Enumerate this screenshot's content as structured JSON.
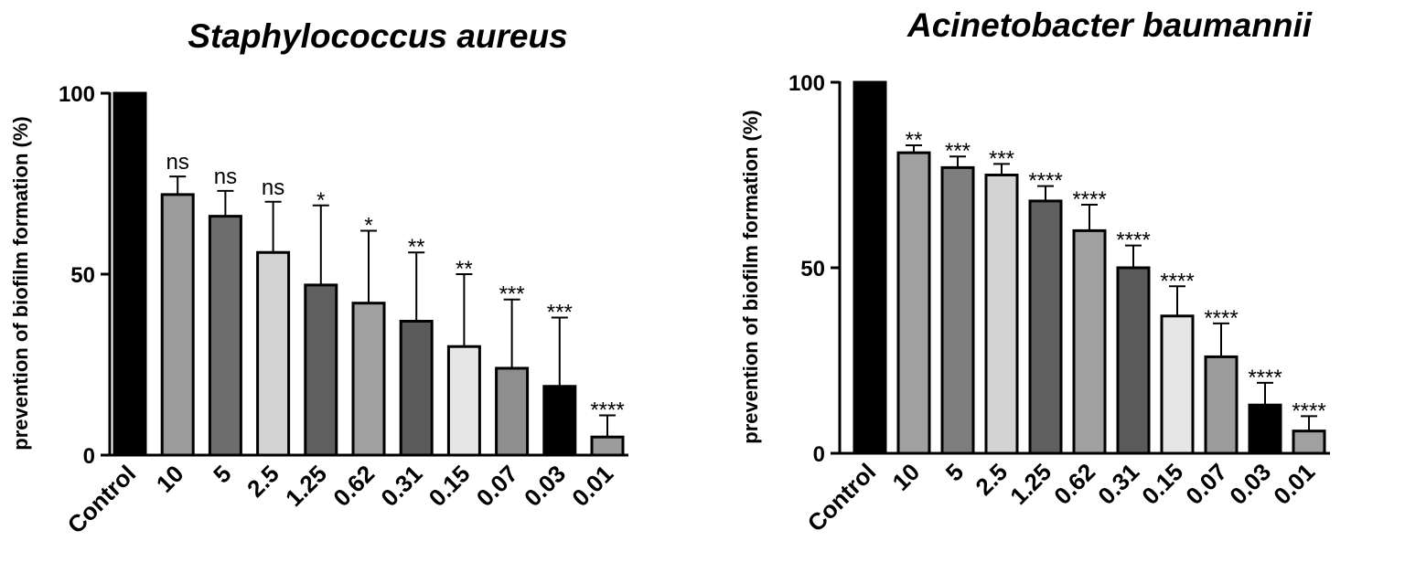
{
  "chart_data": [
    {
      "type": "bar",
      "title": "Staphylococcus aureus",
      "xlabel": "",
      "ylabel": "prevention of biofilm formation (%)",
      "ylim": [
        0,
        100
      ],
      "yticks": [
        "0",
        "50",
        "100"
      ],
      "grid": false,
      "categories": [
        "Control",
        "10",
        "5",
        "2.5",
        "1.25",
        "0.62",
        "0.31",
        "0.15",
        "0.07",
        "0.03",
        "0.01"
      ],
      "values": [
        100,
        72,
        66,
        56,
        47,
        42,
        37,
        30,
        24,
        19,
        5
      ],
      "error": [
        0,
        5,
        7,
        14,
        22,
        20,
        19,
        20,
        19,
        19,
        6
      ],
      "significance": [
        "",
        "ns",
        "ns",
        "ns",
        "*",
        "*",
        "**",
        "**",
        "***",
        "***",
        "****"
      ],
      "bar_colors": [
        "#000000",
        "#9b9b9b",
        "#6d6d6d",
        "#d3d3d3",
        "#5f5f5f",
        "#a0a0a0",
        "#5a5a5a",
        "#e6e6e6",
        "#8e8e8e",
        "#000000",
        "#9b9b9b"
      ]
    },
    {
      "type": "bar",
      "title": "Acinetobacter baumannii",
      "xlabel": "",
      "ylabel": "prevention of biofilm formation (%)",
      "ylim": [
        0,
        100
      ],
      "yticks": [
        "0",
        "50",
        "100"
      ],
      "grid": false,
      "categories": [
        "Control",
        "10",
        "5",
        "2.5",
        "1.25",
        "0.62",
        "0.31",
        "0.15",
        "0.07",
        "0.03",
        "0.01"
      ],
      "values": [
        100,
        81,
        77,
        75,
        68,
        60,
        50,
        37,
        26,
        13,
        6
      ],
      "error": [
        0,
        2,
        3,
        3,
        4,
        7,
        6,
        8,
        9,
        6,
        4
      ],
      "significance": [
        "",
        "**",
        "***",
        "***",
        "****",
        "****",
        "****",
        "****",
        "****",
        "****",
        "****"
      ],
      "bar_colors": [
        "#000000",
        "#a0a0a0",
        "#7e7e7e",
        "#d3d3d3",
        "#5f5f5f",
        "#a0a0a0",
        "#5a5a5a",
        "#e6e6e6",
        "#9b9b9b",
        "#000000",
        "#a0a0a0"
      ]
    }
  ]
}
